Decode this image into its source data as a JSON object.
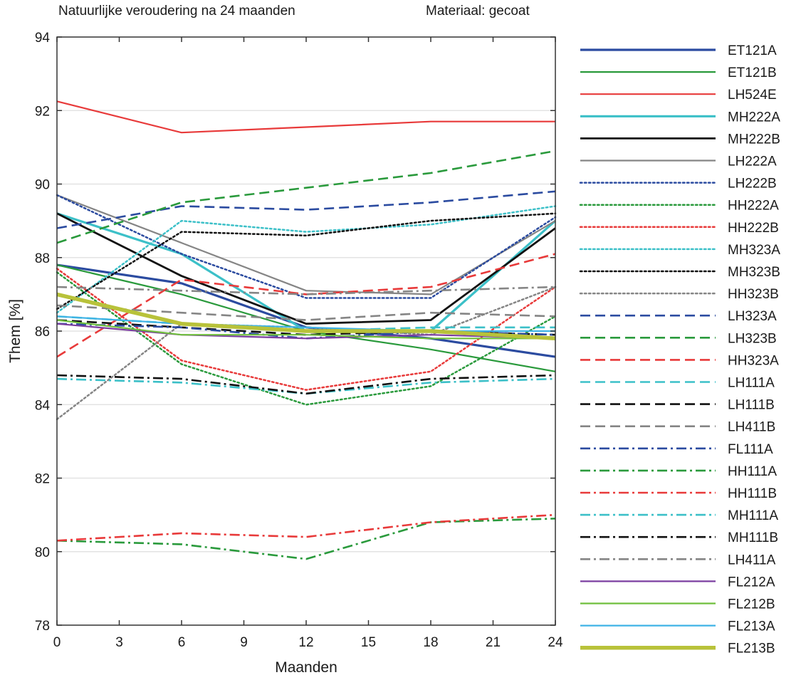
{
  "chart_data": {
    "type": "line",
    "title": "Natuurlijke veroudering na 24 maanden",
    "subtitle": "Materiaal: gecoat",
    "xlabel": "Maanden",
    "ylabel": "Them [%]",
    "xlim": [
      0,
      24
    ],
    "ylim": [
      78,
      94
    ],
    "xticks": [
      "0",
      "3",
      "6",
      "9",
      "12",
      "15",
      "18",
      "21",
      "24"
    ],
    "yticks": [
      "78",
      "80",
      "82",
      "84",
      "86",
      "88",
      "90",
      "92",
      "94"
    ],
    "grid": "horizontal",
    "legend_position": "right",
    "x": [
      0,
      6,
      12,
      18,
      24
    ],
    "series": [
      {
        "name": "ET121A",
        "color": "#2b4ba0",
        "dash": "solid",
        "width": 3.2,
        "values": [
          87.8,
          87.3,
          86.1,
          85.8,
          85.3
        ]
      },
      {
        "name": "ET121B",
        "color": "#2a9a3c",
        "dash": "solid",
        "width": 2.2,
        "values": [
          87.8,
          87.0,
          86.0,
          85.5,
          84.9
        ]
      },
      {
        "name": "LH524E",
        "color": "#e83a3a",
        "dash": "solid",
        "width": 2.2,
        "values": [
          92.25,
          91.4,
          91.55,
          91.7,
          91.7
        ]
      },
      {
        "name": "MH222A",
        "color": "#3cc0c8",
        "dash": "solid",
        "width": 3.2,
        "values": [
          89.2,
          88.1,
          86.0,
          86.0,
          89.0
        ]
      },
      {
        "name": "MH222B",
        "color": "#111111",
        "dash": "solid",
        "width": 2.8,
        "values": [
          89.2,
          87.5,
          86.2,
          86.3,
          88.8
        ]
      },
      {
        "name": "LH222A",
        "color": "#858585",
        "dash": "solid",
        "width": 2.2,
        "values": [
          89.7,
          88.4,
          87.1,
          87.0,
          89.0
        ]
      },
      {
        "name": "LH222B",
        "color": "#2b4ba0",
        "dash": "dotted",
        "width": 2.5,
        "values": [
          89.7,
          88.1,
          86.9,
          86.9,
          89.1
        ]
      },
      {
        "name": "HH222A",
        "color": "#2a9a3c",
        "dash": "dotted",
        "width": 2.5,
        "values": [
          87.6,
          85.1,
          84.0,
          84.5,
          86.4
        ]
      },
      {
        "name": "HH222B",
        "color": "#e83a3a",
        "dash": "dotted",
        "width": 2.5,
        "values": [
          87.7,
          85.2,
          84.4,
          84.9,
          87.2
        ]
      },
      {
        "name": "MH323A",
        "color": "#3cc0c8",
        "dash": "dotted",
        "width": 2.5,
        "values": [
          86.5,
          89.0,
          88.7,
          88.9,
          89.4
        ]
      },
      {
        "name": "MH323B",
        "color": "#111111",
        "dash": "dotted",
        "width": 2.5,
        "values": [
          86.6,
          88.7,
          88.6,
          89.0,
          89.2
        ]
      },
      {
        "name": "HH323B",
        "color": "#858585",
        "dash": "dotted",
        "width": 2.5,
        "values": [
          83.6,
          86.2,
          86.1,
          85.9,
          87.2
        ]
      },
      {
        "name": "LH323A",
        "color": "#2b4ba0",
        "dash": "dashed",
        "width": 2.6,
        "values": [
          88.8,
          89.4,
          89.3,
          89.5,
          89.8
        ]
      },
      {
        "name": "LH323B",
        "color": "#2a9a3c",
        "dash": "dashed",
        "width": 2.6,
        "values": [
          88.4,
          89.5,
          89.9,
          90.3,
          90.9
        ]
      },
      {
        "name": "HH323A",
        "color": "#e83a3a",
        "dash": "dashed",
        "width": 2.6,
        "values": [
          85.3,
          87.4,
          87.0,
          87.2,
          88.1
        ]
      },
      {
        "name": "LH111A",
        "color": "#3cc0c8",
        "dash": "dashed",
        "width": 2.6,
        "values": [
          86.4,
          86.2,
          86.0,
          86.1,
          86.1
        ]
      },
      {
        "name": "LH111B",
        "color": "#111111",
        "dash": "dashed",
        "width": 2.6,
        "values": [
          86.3,
          86.1,
          85.9,
          86.0,
          85.9
        ]
      },
      {
        "name": "LH411B",
        "color": "#858585",
        "dash": "dashed",
        "width": 2.6,
        "values": [
          86.7,
          86.5,
          86.3,
          86.5,
          86.4
        ]
      },
      {
        "name": "FL111A",
        "color": "#2b4ba0",
        "dash": "dashdot",
        "width": 2.6,
        "values": [
          86.2,
          86.1,
          85.8,
          86.0,
          85.9
        ]
      },
      {
        "name": "HH111A",
        "color": "#2a9a3c",
        "dash": "dashdot",
        "width": 2.6,
        "values": [
          80.3,
          80.2,
          79.8,
          80.8,
          80.9
        ]
      },
      {
        "name": "HH111B",
        "color": "#e83a3a",
        "dash": "dashdot",
        "width": 2.6,
        "values": [
          80.3,
          80.5,
          80.4,
          80.8,
          81.0
        ]
      },
      {
        "name": "MH111A",
        "color": "#3cc0c8",
        "dash": "dashdot",
        "width": 2.6,
        "values": [
          84.7,
          84.6,
          84.3,
          84.6,
          84.7
        ]
      },
      {
        "name": "MH111B",
        "color": "#111111",
        "dash": "dashdot",
        "width": 2.6,
        "values": [
          84.8,
          84.7,
          84.3,
          84.7,
          84.8
        ]
      },
      {
        "name": "LH411A",
        "color": "#858585",
        "dash": "dashdot",
        "width": 2.6,
        "values": [
          87.2,
          87.1,
          87.0,
          87.1,
          87.2
        ]
      },
      {
        "name": "FL212A",
        "color": "#7b3ea0",
        "dash": "solid",
        "width": 2.2,
        "values": [
          86.2,
          85.9,
          85.8,
          85.9,
          85.8
        ]
      },
      {
        "name": "FL212B",
        "color": "#6fbf3c",
        "dash": "solid",
        "width": 2.2,
        "values": [
          86.3,
          85.9,
          85.9,
          85.8,
          85.8
        ]
      },
      {
        "name": "FL213A",
        "color": "#3fb3e6",
        "dash": "solid",
        "width": 2.2,
        "values": [
          86.4,
          86.2,
          86.1,
          86.0,
          86.0
        ]
      },
      {
        "name": "FL213B",
        "color": "#b8c23a",
        "dash": "solid",
        "width": 5.5,
        "values": [
          87.0,
          86.2,
          86.0,
          86.0,
          85.8
        ]
      }
    ]
  }
}
